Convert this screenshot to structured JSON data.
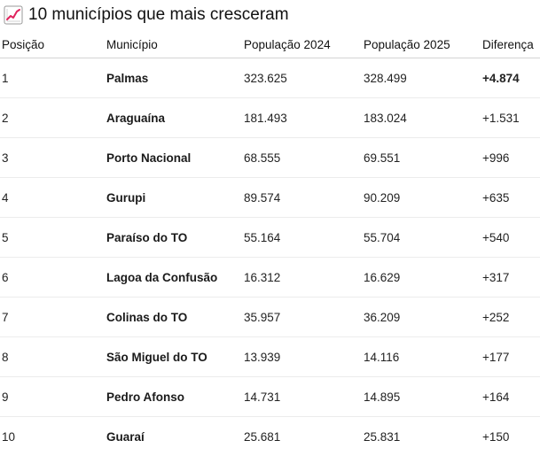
{
  "title": "10 municípios que mais cresceram",
  "title_icon": "chart-increasing-icon",
  "columns": {
    "position": "Posição",
    "municipality": "Município",
    "pop2024": "População 2024",
    "pop2025": "População 2025",
    "difference": "Diferença"
  },
  "rows": [
    {
      "position": "1",
      "municipality": "Palmas",
      "pop2024": "323.625",
      "pop2025": "328.499",
      "difference": "+4.874"
    },
    {
      "position": "2",
      "municipality": "Araguaína",
      "pop2024": "181.493",
      "pop2025": "183.024",
      "difference": "+1.531"
    },
    {
      "position": "3",
      "municipality": "Porto Nacional",
      "pop2024": "68.555",
      "pop2025": "69.551",
      "difference": "+996"
    },
    {
      "position": "4",
      "municipality": "Gurupi",
      "pop2024": "89.574",
      "pop2025": "90.209",
      "difference": "+635"
    },
    {
      "position": "5",
      "municipality": "Paraíso do TO",
      "pop2024": "55.164",
      "pop2025": "55.704",
      "difference": "+540"
    },
    {
      "position": "6",
      "municipality": "Lagoa da Confusão",
      "pop2024": "16.312",
      "pop2025": "16.629",
      "difference": "+317"
    },
    {
      "position": "7",
      "municipality": "Colinas do TO",
      "pop2024": "35.957",
      "pop2025": "36.209",
      "difference": "+252"
    },
    {
      "position": "8",
      "municipality": "São Miguel do TO",
      "pop2024": "13.939",
      "pop2025": "14.116",
      "difference": "+177"
    },
    {
      "position": "9",
      "municipality": "Pedro Afonso",
      "pop2024": "14.731",
      "pop2025": "14.895",
      "difference": "+164"
    },
    {
      "position": "10",
      "municipality": "Guaraí",
      "pop2024": "25.681",
      "pop2025": "25.831",
      "difference": "+150"
    }
  ]
}
